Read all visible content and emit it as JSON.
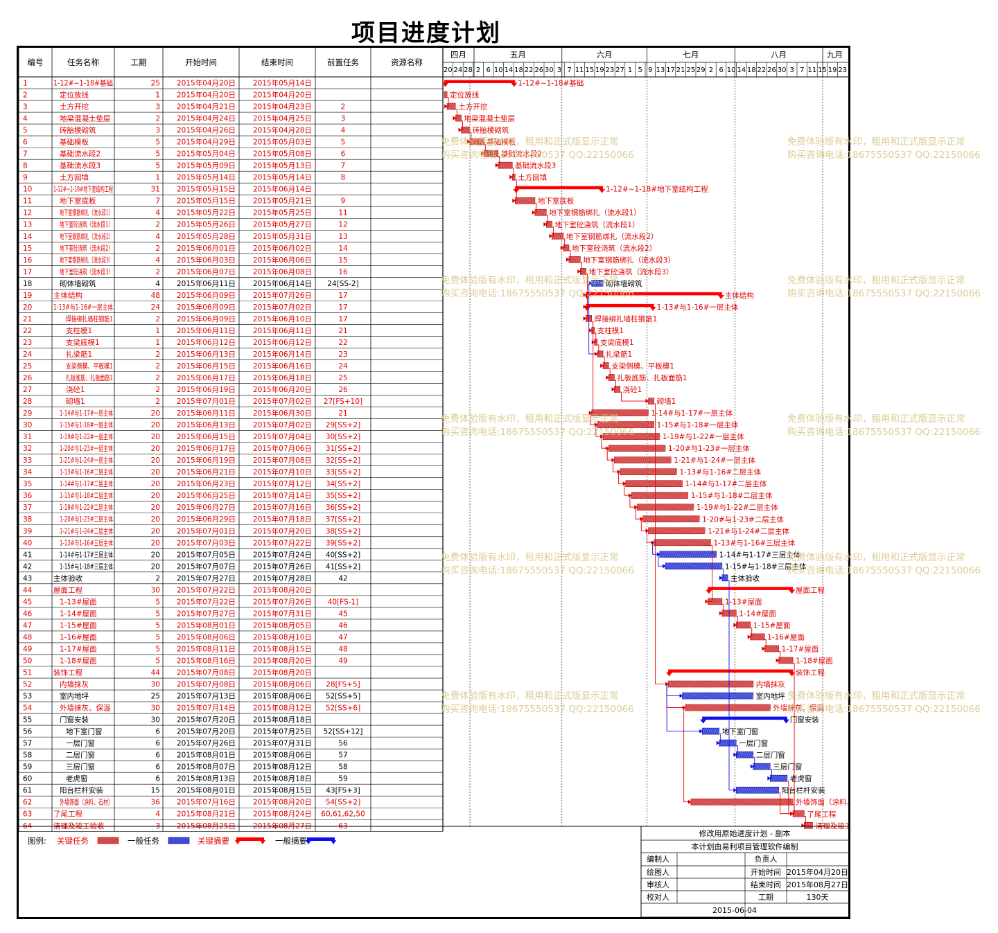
{
  "title": "项目进度计划",
  "columns": [
    "编号",
    "任务名称",
    "工期",
    "开始时间",
    "结束时间",
    "前置任务",
    "资源名称"
  ],
  "months": [
    "四月",
    "五月",
    "六月",
    "七月",
    "八月",
    "九月"
  ],
  "day_ticks": [
    "20",
    "24",
    "28",
    "2",
    "6",
    "10",
    "14",
    "18",
    "22",
    "26",
    "30",
    "3",
    "7",
    "11",
    "15",
    "19",
    "23",
    "27",
    "1",
    "5",
    "9",
    "13",
    "17",
    "21",
    "25",
    "29",
    "2",
    "6",
    "10",
    "14",
    "18",
    "22",
    "26",
    "30",
    "3",
    "7",
    "11",
    "15",
    "19",
    "23"
  ],
  "chart_data": {
    "type": "gantt",
    "start_date": "2015-04-20",
    "tasks": [
      {
        "id": "1",
        "name": "1-12#~1-18#基础",
        "label": "1-12#~1-18#基础",
        "dur": "25",
        "start": "2015年04月20日",
        "end": "2015年05月14日",
        "pred": "",
        "kind": "crit-summary",
        "indent": 0
      },
      {
        "id": "2",
        "name": "定位放线",
        "label": "定位放线",
        "dur": "1",
        "start": "2015年04月20日",
        "end": "2015年04月20日",
        "pred": "",
        "kind": "crit",
        "indent": 1
      },
      {
        "id": "3",
        "name": "土方开挖",
        "label": "土方开挖",
        "dur": "3",
        "start": "2015年04月21日",
        "end": "2015年04月23日",
        "pred": "2",
        "kind": "crit",
        "indent": 1
      },
      {
        "id": "4",
        "name": "地梁混凝土垫层",
        "label": "地梁混凝土垫层",
        "dur": "2",
        "start": "2015年04月24日",
        "end": "2015年04月25日",
        "pred": "3",
        "kind": "crit",
        "indent": 1
      },
      {
        "id": "5",
        "name": "砖胎模砌筑",
        "label": "砖胎模砌筑",
        "dur": "3",
        "start": "2015年04月26日",
        "end": "2015年04月28日",
        "pred": "4",
        "kind": "crit",
        "indent": 1
      },
      {
        "id": "6",
        "name": "基础模板",
        "label": "基础模板",
        "dur": "5",
        "start": "2015年04月29日",
        "end": "2015年05月03日",
        "pred": "5",
        "kind": "crit",
        "indent": 1
      },
      {
        "id": "7",
        "name": "基础流水段2",
        "label": "基础流水段2",
        "dur": "5",
        "start": "2015年05月04日",
        "end": "2015年05月08日",
        "pred": "6",
        "kind": "crit",
        "indent": 1
      },
      {
        "id": "8",
        "name": "基础流水段3",
        "label": "基础流水段3",
        "dur": "5",
        "start": "2015年05月09日",
        "end": "2015年05月13日",
        "pred": "7",
        "kind": "crit",
        "indent": 1
      },
      {
        "id": "9",
        "name": "土方回填",
        "label": "土方回填",
        "dur": "1",
        "start": "2015年05月14日",
        "end": "2015年05月14日",
        "pred": "8",
        "kind": "crit",
        "indent": 1
      },
      {
        "id": "10",
        "name": "1-12#~1-18#地下室结构工程",
        "label": "1-12#~1-18#地下室结构工程",
        "dur": "31",
        "start": "2015年05月15日",
        "end": "2015年06月14日",
        "pred": "",
        "kind": "crit-summary",
        "indent": 0
      },
      {
        "id": "11",
        "name": "地下室底板",
        "label": "地下室底板",
        "dur": "7",
        "start": "2015年05月15日",
        "end": "2015年05月21日",
        "pred": "9",
        "kind": "crit",
        "indent": 1
      },
      {
        "id": "12",
        "name": "地下室钢筋绑扎（流水段1）",
        "label": "地下室钢筋绑扎（流水段1）",
        "dur": "4",
        "start": "2015年05月22日",
        "end": "2015年05月25日",
        "pred": "11",
        "kind": "crit",
        "indent": 1
      },
      {
        "id": "13",
        "name": "地下室砼浇筑（流水段1）",
        "label": "地下室砼浇筑（流水段1）",
        "dur": "2",
        "start": "2015年05月26日",
        "end": "2015年05月27日",
        "pred": "12",
        "kind": "crit",
        "indent": 1
      },
      {
        "id": "14",
        "name": "地下室钢筋绑扎（流水段2）",
        "label": "地下室钢筋绑扎（流水段2）",
        "dur": "4",
        "start": "2015年05月28日",
        "end": "2015年05月31日",
        "pred": "13",
        "kind": "crit",
        "indent": 1
      },
      {
        "id": "15",
        "name": "地下室砼浇筑（流水段2）",
        "label": "地下室砼浇筑（流水段2）",
        "dur": "2",
        "start": "2015年06月01日",
        "end": "2015年06月02日",
        "pred": "14",
        "kind": "crit",
        "indent": 1
      },
      {
        "id": "16",
        "name": "地下室钢筋绑扎（流水段3）",
        "label": "地下室钢筋绑扎（流水段3）",
        "dur": "4",
        "start": "2015年06月03日",
        "end": "2015年06月06日",
        "pred": "15",
        "kind": "crit",
        "indent": 1
      },
      {
        "id": "17",
        "name": "地下室砼浇筑（流水段3）",
        "label": "地下室砼浇筑（流水段3）",
        "dur": "2",
        "start": "2015年06月07日",
        "end": "2015年06月08日",
        "pred": "16",
        "kind": "crit",
        "indent": 1
      },
      {
        "id": "18",
        "name": "砌体墙砌筑",
        "label": "砌体墙砌筑",
        "dur": "4",
        "start": "2015年06月11日",
        "end": "2015年06月14日",
        "pred": "24[SS-2]",
        "kind": "normal",
        "indent": 1
      },
      {
        "id": "19",
        "name": "主体结构",
        "label": "主体结构",
        "dur": "48",
        "start": "2015年06月09日",
        "end": "2015年07月26日",
        "pred": "17",
        "kind": "crit-summary",
        "indent": 0
      },
      {
        "id": "20",
        "name": "1-13#与1-16#一层主体",
        "label": "1-13#与1-16#一层主体",
        "dur": "24",
        "start": "2015年06月09日",
        "end": "2015年07月02日",
        "pred": "17",
        "kind": "crit-summary",
        "indent": 0
      },
      {
        "id": "21",
        "name": "焊接绑扎墙柱钢筋1",
        "label": "焊接绑扎墙柱钢筋1",
        "dur": "2",
        "start": "2015年06月09日",
        "end": "2015年06月10日",
        "pred": "17",
        "kind": "crit",
        "indent": 2
      },
      {
        "id": "22",
        "name": "支柱模1",
        "label": "支柱模1",
        "dur": "1",
        "start": "2015年06月11日",
        "end": "2015年06月11日",
        "pred": "21",
        "kind": "crit",
        "indent": 2
      },
      {
        "id": "23",
        "name": "支梁底模1",
        "label": "支梁底模1",
        "dur": "1",
        "start": "2015年06月12日",
        "end": "2015年06月12日",
        "pred": "22",
        "kind": "crit",
        "indent": 2
      },
      {
        "id": "24",
        "name": "扎梁筋1",
        "label": "扎梁筋1",
        "dur": "2",
        "start": "2015年06月13日",
        "end": "2015年06月14日",
        "pred": "23",
        "kind": "crit",
        "indent": 2
      },
      {
        "id": "25",
        "name": "支梁侧模、平板模1",
        "label": "支梁侧模、平板模1",
        "dur": "2",
        "start": "2015年06月15日",
        "end": "2015年06月16日",
        "pred": "24",
        "kind": "crit",
        "indent": 2
      },
      {
        "id": "26",
        "name": "扎板底筋、扎板面筋1",
        "label": "扎板底筋、扎板面筋1",
        "dur": "2",
        "start": "2015年06月17日",
        "end": "2015年06月18日",
        "pred": "25",
        "kind": "crit",
        "indent": 2
      },
      {
        "id": "27",
        "name": "浇砼1",
        "label": "浇砼1",
        "dur": "2",
        "start": "2015年06月19日",
        "end": "2015年06月20日",
        "pred": "26",
        "kind": "crit",
        "indent": 2
      },
      {
        "id": "28",
        "name": "砌墙1",
        "label": "砌墙1",
        "dur": "2",
        "start": "2015年07月01日",
        "end": "2015年07月02日",
        "pred": "27[FS+10]",
        "kind": "crit",
        "indent": 2
      },
      {
        "id": "29",
        "name": "1-14#与1-17#一层主体",
        "label": "1-14#与1-17#一层主体",
        "dur": "20",
        "start": "2015年06月11日",
        "end": "2015年06月30日",
        "pred": "21",
        "kind": "crit",
        "indent": 1
      },
      {
        "id": "30",
        "name": "1-15#与1-18#一层主体",
        "label": "1-15#与1-18#一层主体",
        "dur": "20",
        "start": "2015年06月13日",
        "end": "2015年07月02日",
        "pred": "29[SS+2]",
        "kind": "crit",
        "indent": 1
      },
      {
        "id": "31",
        "name": "1-19#与1-22#一层主体",
        "label": "1-19#与1-22#一层主体",
        "dur": "20",
        "start": "2015年06月15日",
        "end": "2015年07月04日",
        "pred": "30[SS+2]",
        "kind": "crit",
        "indent": 1
      },
      {
        "id": "32",
        "name": "1-20#与1-23#一层主体",
        "label": "1-20#与1-23#一层主体",
        "dur": "20",
        "start": "2015年06月17日",
        "end": "2015年07月06日",
        "pred": "31[SS+2]",
        "kind": "crit",
        "indent": 1
      },
      {
        "id": "33",
        "name": "1-21#与1-24#一层主体",
        "label": "1-21#与1-24#一层主体",
        "dur": "20",
        "start": "2015年06月19日",
        "end": "2015年07月08日",
        "pred": "32[SS+2]",
        "kind": "crit",
        "indent": 1
      },
      {
        "id": "34",
        "name": "1-13#与1-16#二层主体",
        "label": "1-13#与1-16#二层主体",
        "dur": "20",
        "start": "2015年06月21日",
        "end": "2015年07月10日",
        "pred": "33[SS+2]",
        "kind": "crit",
        "indent": 1
      },
      {
        "id": "35",
        "name": "1-14#与1-17#二层主体",
        "label": "1-14#与1-17#二层主体",
        "dur": "20",
        "start": "2015年06月23日",
        "end": "2015年07月12日",
        "pred": "34[SS+2]",
        "kind": "crit",
        "indent": 1
      },
      {
        "id": "36",
        "name": "1-15#与1-18#二层主体",
        "label": "1-15#与1-18#二层主体",
        "dur": "20",
        "start": "2015年06月25日",
        "end": "2015年07月14日",
        "pred": "35[SS+2]",
        "kind": "crit",
        "indent": 1
      },
      {
        "id": "37",
        "name": "1-19#与1-22#二层主体",
        "label": "1-19#与1-22#二层主体",
        "dur": "20",
        "start": "2015年06月27日",
        "end": "2015年07月16日",
        "pred": "36[SS+2]",
        "kind": "crit",
        "indent": 1
      },
      {
        "id": "38",
        "name": "1-20#与1-23#二层主体",
        "label": "1-20#与1-23#二层主体",
        "dur": "20",
        "start": "2015年06月29日",
        "end": "2015年07月18日",
        "pred": "37[SS+2]",
        "kind": "crit",
        "indent": 1
      },
      {
        "id": "39",
        "name": "1-21#与1-24#二层主体",
        "label": "1-21#与1-24#二层主体",
        "dur": "20",
        "start": "2015年07月01日",
        "end": "2015年07月20日",
        "pred": "38[SS+2]",
        "kind": "crit",
        "indent": 1
      },
      {
        "id": "40",
        "name": "1-13#与1-16#三层主体",
        "label": "1-13#与1-16#三层主体",
        "dur": "20",
        "start": "2015年07月03日",
        "end": "2015年07月22日",
        "pred": "39[SS+2]",
        "kind": "crit",
        "indent": 1
      },
      {
        "id": "41",
        "name": "1-14#与1-17#三层主体",
        "label": "1-14#与1-17#三层主体",
        "dur": "20",
        "start": "2015年07月05日",
        "end": "2015年07月24日",
        "pred": "40[SS+2]",
        "kind": "normal",
        "indent": 1
      },
      {
        "id": "42",
        "name": "1-15#与1-18#三层主体",
        "label": "1-15#与1-18#三层主体",
        "dur": "20",
        "start": "2015年07月07日",
        "end": "2015年07月26日",
        "pred": "41[SS+2]",
        "kind": "normal",
        "indent": 1
      },
      {
        "id": "43",
        "name": "主体验收",
        "label": "主体验收",
        "dur": "2",
        "start": "2015年07月27日",
        "end": "2015年07月28日",
        "pred": "42",
        "kind": "normal",
        "indent": 0
      },
      {
        "id": "44",
        "name": "屋面工程",
        "label": "屋面工程",
        "dur": "30",
        "start": "2015年07月22日",
        "end": "2015年08月20日",
        "pred": "",
        "kind": "crit-summary",
        "indent": 0
      },
      {
        "id": "45",
        "name": "1-13#屋面",
        "label": "1-13#屋面",
        "dur": "5",
        "start": "2015年07月22日",
        "end": "2015年07月26日",
        "pred": "40[FS-1]",
        "kind": "crit",
        "indent": 1
      },
      {
        "id": "46",
        "name": "1-14#屋面",
        "label": "1-14#屋面",
        "dur": "5",
        "start": "2015年07月27日",
        "end": "2015年07月31日",
        "pred": "45",
        "kind": "crit",
        "indent": 1
      },
      {
        "id": "47",
        "name": "1-15#屋面",
        "label": "1-15#屋面",
        "dur": "5",
        "start": "2015年08月01日",
        "end": "2015年08月05日",
        "pred": "46",
        "kind": "crit",
        "indent": 1
      },
      {
        "id": "48",
        "name": "1-16#屋面",
        "label": "1-16#屋面",
        "dur": "5",
        "start": "2015年08月06日",
        "end": "2015年08月10日",
        "pred": "47",
        "kind": "crit",
        "indent": 1
      },
      {
        "id": "49",
        "name": "1-17#屋面",
        "label": "1-17#屋面",
        "dur": "5",
        "start": "2015年08月11日",
        "end": "2015年08月15日",
        "pred": "48",
        "kind": "crit",
        "indent": 1
      },
      {
        "id": "50",
        "name": "1-18#屋面",
        "label": "1-18#屋面",
        "dur": "5",
        "start": "2015年08月16日",
        "end": "2015年08月20日",
        "pred": "49",
        "kind": "crit",
        "indent": 1
      },
      {
        "id": "51",
        "name": "装饰工程",
        "label": "装饰工程",
        "dur": "44",
        "start": "2015年07月08日",
        "end": "2015年08月20日",
        "pred": "",
        "kind": "crit-summary",
        "indent": 0
      },
      {
        "id": "52",
        "name": "内墙抹灰",
        "label": "内墙抹灰",
        "dur": "30",
        "start": "2015年07月08日",
        "end": "2015年08月06日",
        "pred": "28[FS+5]",
        "kind": "crit",
        "indent": 1
      },
      {
        "id": "53",
        "name": "室内地坪",
        "label": "室内地坪",
        "dur": "25",
        "start": "2015年07月13日",
        "end": "2015年08月06日",
        "pred": "52[SS+5]",
        "kind": "normal",
        "indent": 1
      },
      {
        "id": "54",
        "name": "外墙抹灰、保温",
        "label": "外墙抹灰、保温",
        "dur": "30",
        "start": "2015年07月14日",
        "end": "2015年08月12日",
        "pred": "52[SS+6]",
        "kind": "crit",
        "indent": 1
      },
      {
        "id": "55",
        "name": "门窗安装",
        "label": "门窗安装",
        "dur": "30",
        "start": "2015年07月20日",
        "end": "2015年08月18日",
        "pred": "",
        "kind": "norm-summary",
        "indent": 1
      },
      {
        "id": "56",
        "name": "地下室门窗",
        "label": "地下室门窗",
        "dur": "6",
        "start": "2015年07月20日",
        "end": "2015年07月25日",
        "pred": "52[SS+12]",
        "kind": "normal",
        "indent": 2
      },
      {
        "id": "57",
        "name": "一层门窗",
        "label": "一层门窗",
        "dur": "6",
        "start": "2015年07月26日",
        "end": "2015年07月31日",
        "pred": "56",
        "kind": "normal",
        "indent": 2
      },
      {
        "id": "58",
        "name": "二层门窗",
        "label": "二层门窗",
        "dur": "6",
        "start": "2015年08月01日",
        "end": "2015年08月06日",
        "pred": "57",
        "kind": "normal",
        "indent": 2
      },
      {
        "id": "59",
        "name": "三层门窗",
        "label": "三层门窗",
        "dur": "6",
        "start": "2015年08月07日",
        "end": "2015年08月12日",
        "pred": "58",
        "kind": "normal",
        "indent": 2
      },
      {
        "id": "60",
        "name": "老虎窗",
        "label": "老虎窗",
        "dur": "6",
        "start": "2015年08月13日",
        "end": "2015年08月18日",
        "pred": "59",
        "kind": "normal",
        "indent": 2
      },
      {
        "id": "61",
        "name": "阳台栏杆安装",
        "label": "阳台栏杆安装",
        "dur": "15",
        "start": "2015年08月01日",
        "end": "2015年08月15日",
        "pred": "43[FS+3]",
        "kind": "normal",
        "indent": 1
      },
      {
        "id": "62",
        "name": "外墙饰面（涂料、石材）",
        "label": "外墙饰面（涂料、石材）",
        "dur": "36",
        "start": "2015年07月16日",
        "end": "2015年08月20日",
        "pred": "54[SS+2]",
        "kind": "crit",
        "indent": 1
      },
      {
        "id": "63",
        "name": "了尾工程",
        "label": "了尾工程",
        "dur": "4",
        "start": "2015年08月21日",
        "end": "2015年08月24日",
        "pred": "60,61,62,50",
        "kind": "crit",
        "indent": 0
      },
      {
        "id": "64",
        "name": "清理及竣工验收",
        "label": "清理及竣工验收",
        "dur": "3",
        "start": "2015年08月25日",
        "end": "2015年08月27日",
        "pred": "63",
        "kind": "crit",
        "indent": 0
      }
    ]
  },
  "legend": {
    "label": "图例:",
    "items": [
      "关键任务",
      "一般任务",
      "关键摘要",
      "一般摘要"
    ]
  },
  "info": {
    "plan_name": "修改用原始进度计划 - 副本",
    "software": "本计划由易利项目管理软件编制",
    "editor_label": "编制人",
    "owner_label": "负责人",
    "drawer_label": "绘图人",
    "start_label": "开始时间",
    "start_value": "2015年04月20日",
    "reviewer_label": "审核人",
    "end_label": "结束时间",
    "end_value": "2015年08月27日",
    "checker_label": "校对人",
    "duration_label": "工期",
    "duration_value": "130天",
    "date": "2015-06-04"
  },
  "watermark": {
    "line1": "免费体验版有水印，租用和正式版显示正常",
    "line2": "购买咨询电话:18675550537 QQ:22150066"
  },
  "colors": {
    "critical": "#ff0000",
    "critical_bar": "#d24a4a",
    "normal_bar": "#3f4ad8",
    "summary_normal": "#1010ee",
    "text_red": "#e00000"
  }
}
